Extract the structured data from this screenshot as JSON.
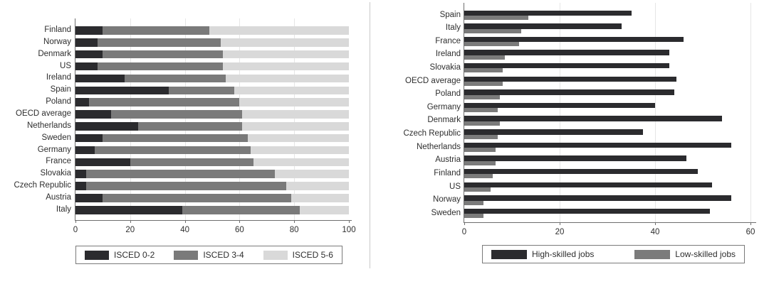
{
  "figure": {
    "background": "#ffffff",
    "divider_color": "#c9c9c9",
    "axis_color": "#6e6e6e",
    "gridline_color": "#e6e6e6",
    "text_color": "#2e2e2e",
    "legend_border_color": "#7a7a7a"
  },
  "chart_data": [
    {
      "type": "bar",
      "orientation": "horizontal",
      "stacked": true,
      "title": "",
      "xlabel": "",
      "ylabel": "",
      "xlim": [
        0,
        100
      ],
      "xticks": [
        0,
        20,
        40,
        60,
        80,
        100
      ],
      "gridlines": [
        20,
        40,
        60,
        80
      ],
      "grid": true,
      "legend_position": "bottom",
      "categories": [
        "Finland",
        "Norway",
        "Denmark",
        "US",
        "Ireland",
        "Spain",
        "Poland",
        "OECD average",
        "Netherlands",
        "Sweden",
        "Germany",
        "France",
        "Slovakia",
        "Czech Republic",
        "Austria",
        "Italy"
      ],
      "series": [
        {
          "name": "ISCED 0-2",
          "color": "#2b2b2e",
          "values": [
            10,
            8,
            10,
            8,
            18,
            34,
            5,
            13,
            23,
            10,
            7,
            20,
            4,
            4,
            10,
            39
          ]
        },
        {
          "name": "ISCED 3-4",
          "color": "#7a7a7a",
          "values": [
            39,
            45,
            44,
            46,
            37,
            24,
            55,
            48,
            38,
            53,
            57,
            45,
            69,
            73,
            69,
            43
          ]
        },
        {
          "name": "ISCED 5-6",
          "color": "#d9d9d9",
          "values": [
            51,
            47,
            46,
            46,
            45,
            42,
            40,
            39,
            39,
            37,
            36,
            35,
            27,
            23,
            21,
            18
          ]
        }
      ]
    },
    {
      "type": "bar",
      "orientation": "horizontal",
      "stacked": false,
      "title": "",
      "xlabel": "",
      "ylabel": "",
      "xlim": [
        0,
        60
      ],
      "xticks": [
        0,
        20,
        40,
        60
      ],
      "gridlines": [
        20,
        40,
        60
      ],
      "grid": true,
      "legend_position": "bottom",
      "categories": [
        "Spain",
        "Italy",
        "France",
        "Ireland",
        "Slovakia",
        "OECD average",
        "Poland",
        "Germany",
        "Denmark",
        "Czech Republic",
        "Netherlands",
        "Austria",
        "Finland",
        "US",
        "Norway",
        "Sweden"
      ],
      "series": [
        {
          "name": "High-skilled jobs",
          "color": "#2b2b2e",
          "values": [
            35,
            33,
            46,
            43,
            43,
            44.5,
            44,
            40,
            54,
            37.5,
            56,
            46.5,
            49,
            52,
            56,
            51.5
          ]
        },
        {
          "name": "Low-skilled jobs",
          "color": "#7b7b7b",
          "values": [
            13.5,
            12,
            11.5,
            8.5,
            8,
            8,
            7.5,
            7,
            7.5,
            7,
            6.5,
            6.5,
            6,
            5.5,
            4,
            4
          ]
        }
      ]
    }
  ]
}
